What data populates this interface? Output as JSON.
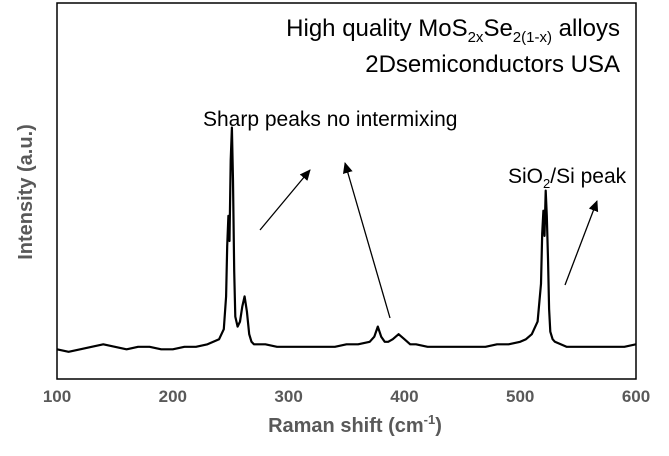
{
  "chart_data": {
    "type": "line",
    "title_lines": [
      {
        "prefix": "High quality MoS",
        "sub1": "2x",
        "mid": "Se",
        "sub2": "2(1-x)",
        "suffix": " alloys"
      },
      {
        "text": "2Dsemiconductors USA"
      }
    ],
    "xlabel": {
      "base": "Raman shift (cm",
      "sup": "-1",
      "end": ")"
    },
    "ylabel": "Intensity (a.u.)",
    "xlim": [
      100,
      600
    ],
    "ylim": [
      0,
      100
    ],
    "x_ticks": [
      "100",
      "200",
      "300",
      "400",
      "500",
      "600"
    ],
    "grid": false,
    "legend": "none",
    "line_color": "#000000",
    "series": [
      {
        "x": [
          100,
          110,
          120,
          130,
          140,
          150,
          160,
          170,
          180,
          190,
          200,
          210,
          220,
          230,
          240,
          244,
          246,
          247,
          248,
          249,
          250,
          251,
          252,
          253,
          254,
          256,
          258,
          260,
          262,
          264,
          266,
          268,
          270,
          275,
          280,
          290,
          300,
          310,
          320,
          330,
          340,
          350,
          360,
          370,
          374,
          377,
          380,
          383,
          386,
          390,
          395,
          400,
          405,
          410,
          420,
          430,
          440,
          450,
          460,
          470,
          480,
          490,
          500,
          505,
          510,
          515,
          518,
          519,
          520,
          521,
          522,
          523,
          524,
          525,
          526,
          528,
          530,
          535,
          540,
          550,
          560,
          570,
          580,
          590,
          600
        ],
        "values": [
          9,
          8,
          9,
          10,
          11,
          10,
          9,
          10,
          10,
          9,
          9,
          10,
          10,
          11,
          13,
          17,
          30,
          50,
          62,
          52,
          84,
          97,
          76,
          40,
          22,
          18,
          20,
          26,
          30,
          24,
          15,
          12,
          11,
          11,
          11,
          10,
          10,
          10,
          10,
          10,
          10,
          11,
          11,
          12,
          14,
          18,
          14,
          12,
          12,
          13,
          15,
          13,
          11,
          11,
          10,
          10,
          10,
          10,
          10,
          10,
          11,
          11,
          12,
          13,
          15,
          20,
          35,
          55,
          64,
          54,
          72,
          62,
          45,
          25,
          16,
          13,
          12,
          11,
          10,
          10,
          10,
          10,
          10,
          10,
          11
        ]
      }
    ],
    "annotations": [
      {
        "text": "Sharp peaks no intermixing"
      },
      {
        "prefix": "SiO",
        "sub": "2",
        "suffix": "/Si peak"
      }
    ]
  }
}
